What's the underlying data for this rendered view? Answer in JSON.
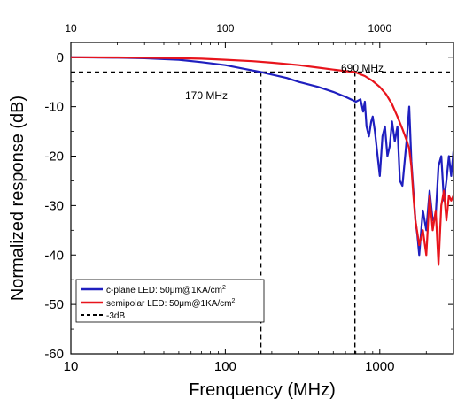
{
  "chart_data": {
    "type": "line",
    "xlabel": "Frenquency (MHz)",
    "ylabel": "Normalized response (dB)",
    "xscale": "log",
    "xlim": [
      10,
      3000
    ],
    "ylim": [
      -60,
      3
    ],
    "x_ticks": [
      10,
      100,
      1000
    ],
    "x_tick_labels": [
      "10",
      "100",
      "1000"
    ],
    "top_x_tick_labels": [
      "10",
      "100",
      "1000"
    ],
    "y_ticks": [
      0,
      -10,
      -20,
      -30,
      -40,
      -50,
      -60
    ],
    "y_tick_labels": [
      "0",
      "-10",
      "-20",
      "-30",
      "-40",
      "-50",
      "-60"
    ],
    "grid": false,
    "legend_position": "bottom-left",
    "threshold_line": {
      "y": -3,
      "label": "-3dB",
      "color": "#000000",
      "style": "dashed"
    },
    "annotations": [
      {
        "text": "170 MHz",
        "x": 170,
        "y": -3
      },
      {
        "text": "690 MHz",
        "x": 690,
        "y": -3
      }
    ],
    "series": [
      {
        "name": "c-plane LED: 50μm@1KA/cm",
        "name_sup": "2",
        "color": "#1f1fbf",
        "x": [
          10,
          20,
          30,
          50,
          70,
          100,
          130,
          170,
          200,
          250,
          300,
          400,
          500,
          600,
          700,
          750,
          780,
          800,
          820,
          850,
          880,
          900,
          930,
          960,
          1000,
          1040,
          1080,
          1120,
          1160,
          1200,
          1250,
          1300,
          1350,
          1400,
          1450,
          1500,
          1550,
          1600,
          1650,
          1700,
          1750,
          1800,
          1900,
          2000,
          2100,
          2200,
          2300,
          2400,
          2500,
          2600,
          2700,
          2800,
          2900,
          3000
        ],
        "y": [
          0,
          -0.1,
          -0.2,
          -0.5,
          -1,
          -1.6,
          -2.3,
          -3,
          -3.5,
          -4.2,
          -5,
          -6,
          -7,
          -8,
          -9,
          -8.5,
          -11,
          -9,
          -14,
          -16,
          -13,
          -12,
          -15,
          -19,
          -24,
          -16,
          -14,
          -20,
          -18,
          -13,
          -17,
          -14,
          -25,
          -26,
          -21,
          -16,
          -10,
          -21,
          -27,
          -33,
          -36,
          -40,
          -31,
          -35,
          -27,
          -33,
          -32,
          -22,
          -20,
          -29,
          -25,
          -20,
          -24,
          -19
        ]
      },
      {
        "name": "semipolar LED: 50μm@1KA/cm",
        "name_sup": "2",
        "color": "#e8141c",
        "x": [
          10,
          20,
          30,
          50,
          70,
          100,
          150,
          200,
          300,
          400,
          500,
          600,
          690,
          800,
          900,
          1000,
          1100,
          1200,
          1300,
          1400,
          1500,
          1550,
          1600,
          1650,
          1700,
          1800,
          1900,
          2000,
          2100,
          2200,
          2300,
          2400,
          2500,
          2600,
          2700,
          2800,
          2900,
          3000
        ],
        "y": [
          0,
          -0.05,
          -0.1,
          -0.2,
          -0.3,
          -0.5,
          -0.8,
          -1.1,
          -1.6,
          -2.1,
          -2.5,
          -2.8,
          -3,
          -3.8,
          -4.8,
          -6,
          -7.5,
          -9.5,
          -12,
          -14.5,
          -17,
          -18.5,
          -22,
          -28,
          -33,
          -38,
          -35,
          -40,
          -28,
          -35,
          -31,
          -42,
          -30,
          -27,
          -33,
          -28,
          -29,
          -28
        ]
      }
    ]
  }
}
